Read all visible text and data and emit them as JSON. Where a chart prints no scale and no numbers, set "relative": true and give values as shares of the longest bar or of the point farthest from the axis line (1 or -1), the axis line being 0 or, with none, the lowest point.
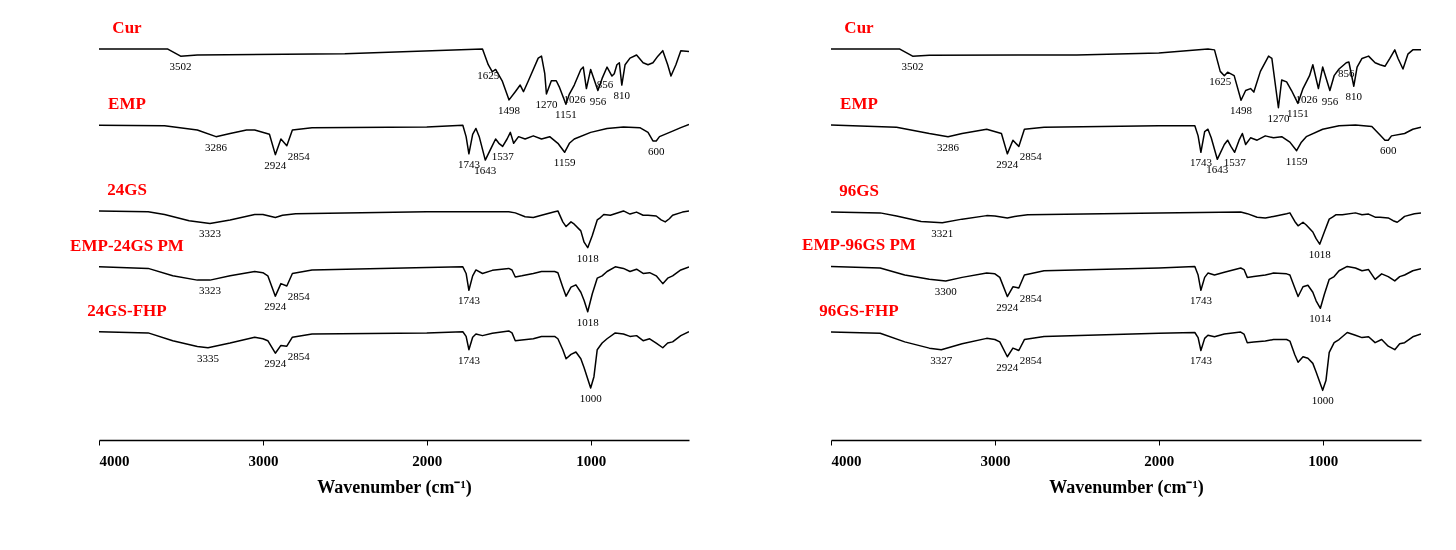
{
  "chart_data": [
    {
      "type": "line",
      "relative": true,
      "xlabel": "Wavenumber (cm⁻¹)",
      "xlim": [
        4000,
        400
      ],
      "xticks": [
        4000,
        3000,
        2000,
        1000
      ],
      "tick_labels": "x",
      "series": [
        {
          "name": "Cur",
          "color": "#000000",
          "x": [
            4000,
            3580,
            3502,
            3400,
            2500,
            1660,
            1625,
            1600,
            1580,
            1540,
            1498,
            1460,
            1430,
            1410,
            1380,
            1320,
            1300,
            1280,
            1270,
            1240,
            1210,
            1190,
            1151,
            1130,
            1100,
            1060,
            1045,
            1026,
            1000,
            956,
            930,
            900,
            870,
            856,
            840,
            825,
            810,
            790,
            760,
            720,
            680,
            650,
            620,
            590,
            560,
            530,
            510,
            480,
            450,
            400
          ],
          "values": [
            1.0,
            1.0,
            0.982,
            0.985,
            0.988,
            1.0,
            0.96,
            0.942,
            0.948,
            0.919,
            0.87,
            0.891,
            0.908,
            0.891,
            0.919,
            0.977,
            0.982,
            0.937,
            0.885,
            0.919,
            0.919,
            0.902,
            0.859,
            0.885,
            0.908,
            0.948,
            0.954,
            0.899,
            0.948,
            0.894,
            0.925,
            0.954,
            0.931,
            0.937,
            0.96,
            0.965,
            0.908,
            0.96,
            0.977,
            0.985,
            0.965,
            0.96,
            0.965,
            0.982,
            0.996,
            0.96,
            0.931,
            0.96,
            0.996,
            0.994
          ]
        },
        {
          "name": "EMP",
          "color": "#000000",
          "x": [
            4000,
            3600,
            3400,
            3286,
            3200,
            3100,
            3050,
            2960,
            2924,
            2890,
            2854,
            2820,
            2700,
            2000,
            1780,
            1760,
            1743,
            1720,
            1700,
            1680,
            1643,
            1600,
            1580,
            1560,
            1537,
            1510,
            1490,
            1470,
            1440,
            1400,
            1350,
            1300,
            1250,
            1200,
            1159,
            1130,
            1100,
            1000,
            900,
            800,
            700,
            650,
            620,
            600,
            580,
            500,
            450,
            400
          ],
          "values": [
            0.805,
            0.804,
            0.793,
            0.776,
            0.784,
            0.793,
            0.793,
            0.782,
            0.73,
            0.77,
            0.753,
            0.793,
            0.799,
            0.801,
            0.805,
            0.776,
            0.732,
            0.782,
            0.797,
            0.776,
            0.716,
            0.753,
            0.77,
            0.759,
            0.751,
            0.77,
            0.787,
            0.759,
            0.776,
            0.77,
            0.778,
            0.77,
            0.776,
            0.759,
            0.736,
            0.759,
            0.77,
            0.787,
            0.797,
            0.801,
            0.799,
            0.787,
            0.765,
            0.765,
            0.776,
            0.79,
            0.799,
            0.807
          ]
        },
        {
          "name": "24GS",
          "color": "#000000",
          "x": [
            4000,
            3700,
            3600,
            3450,
            3323,
            3200,
            3050,
            3000,
            2924,
            2880,
            2800,
            2000,
            1500,
            1460,
            1400,
            1350,
            1300,
            1220,
            1200,
            1170,
            1150,
            1120,
            1100,
            1060,
            1040,
            1018,
            990,
            960,
            940,
            920,
            880,
            800,
            760,
            720,
            680,
            650,
            600,
            570,
            545,
            520,
            500,
            440,
            400
          ],
          "values": [
            0.586,
            0.584,
            0.577,
            0.561,
            0.554,
            0.563,
            0.577,
            0.577,
            0.569,
            0.575,
            0.579,
            0.584,
            0.584,
            0.581,
            0.571,
            0.569,
            0.575,
            0.584,
            0.586,
            0.558,
            0.546,
            0.558,
            0.552,
            0.535,
            0.506,
            0.492,
            0.523,
            0.563,
            0.569,
            0.577,
            0.575,
            0.586,
            0.578,
            0.583,
            0.575,
            0.575,
            0.573,
            0.563,
            0.558,
            0.566,
            0.575,
            0.583,
            0.586
          ]
        },
        {
          "name": "EMP-24GS PM",
          "color": "#000000",
          "x": [
            4000,
            3700,
            3550,
            3400,
            3323,
            3200,
            3050,
            3000,
            2970,
            2924,
            2890,
            2854,
            2820,
            2700,
            2000,
            1780,
            1760,
            1743,
            1720,
            1700,
            1660,
            1600,
            1500,
            1480,
            1460,
            1420,
            1350,
            1300,
            1220,
            1200,
            1170,
            1150,
            1120,
            1090,
            1060,
            1040,
            1018,
            990,
            960,
            930,
            900,
            850,
            800,
            760,
            720,
            680,
            640,
            600,
            560,
            530,
            500,
            450,
            400
          ],
          "values": [
            0.443,
            0.439,
            0.42,
            0.409,
            0.409,
            0.42,
            0.431,
            0.428,
            0.42,
            0.368,
            0.4,
            0.394,
            0.426,
            0.435,
            0.441,
            0.443,
            0.426,
            0.383,
            0.42,
            0.435,
            0.426,
            0.434,
            0.439,
            0.435,
            0.417,
            0.42,
            0.426,
            0.431,
            0.431,
            0.428,
            0.391,
            0.368,
            0.391,
            0.397,
            0.378,
            0.357,
            0.328,
            0.374,
            0.414,
            0.42,
            0.431,
            0.443,
            0.439,
            0.431,
            0.437,
            0.426,
            0.428,
            0.42,
            0.4,
            0.414,
            0.42,
            0.435,
            0.443
          ]
        },
        {
          "name": "24GS-FHP",
          "color": "#000000",
          "x": [
            4000,
            3700,
            3550,
            3400,
            3335,
            3200,
            3050,
            3000,
            2970,
            2924,
            2890,
            2854,
            2820,
            2700,
            2000,
            1780,
            1760,
            1743,
            1720,
            1700,
            1660,
            1600,
            1500,
            1480,
            1460,
            1420,
            1350,
            1300,
            1220,
            1200,
            1170,
            1150,
            1120,
            1090,
            1060,
            1040,
            1000,
            980,
            960,
            930,
            900,
            850,
            800,
            760,
            720,
            680,
            640,
            600,
            560,
            530,
            500,
            450,
            400
          ],
          "values": [
            0.277,
            0.274,
            0.254,
            0.239,
            0.236,
            0.248,
            0.263,
            0.259,
            0.254,
            0.222,
            0.242,
            0.24,
            0.263,
            0.271,
            0.274,
            0.277,
            0.265,
            0.231,
            0.263,
            0.271,
            0.267,
            0.273,
            0.279,
            0.274,
            0.254,
            0.256,
            0.259,
            0.265,
            0.265,
            0.259,
            0.231,
            0.208,
            0.219,
            0.225,
            0.208,
            0.185,
            0.133,
            0.162,
            0.231,
            0.248,
            0.259,
            0.274,
            0.271,
            0.265,
            0.267,
            0.254,
            0.259,
            0.248,
            0.236,
            0.248,
            0.251,
            0.267,
            0.277
          ]
        }
      ],
      "annotations": [
        {
          "text": "3502",
          "x": 3502,
          "y": 0.982
        },
        {
          "text": "1625",
          "x": 1625,
          "y": 0.96
        },
        {
          "text": "1498",
          "x": 1498,
          "y": 0.87
        },
        {
          "text": "1270",
          "x": 1270,
          "y": 0.885
        },
        {
          "text": "1151",
          "x": 1151,
          "y": 0.859
        },
        {
          "text": "1026",
          "x": 1026,
          "y": 0.899
        },
        {
          "text": "956",
          "x": 956,
          "y": 0.894
        },
        {
          "text": "856",
          "x": 856,
          "y": 0.937
        },
        {
          "text": "810",
          "x": 810,
          "y": 0.908
        },
        {
          "text": "3286",
          "x": 3286,
          "y": 0.776
        },
        {
          "text": "2924",
          "x": 2924,
          "y": 0.73
        },
        {
          "text": "2854",
          "x": 2854,
          "y": 0.753
        },
        {
          "text": "1743",
          "x": 1743,
          "y": 0.732
        },
        {
          "text": "1643",
          "x": 1643,
          "y": 0.716
        },
        {
          "text": "1537",
          "x": 1537,
          "y": 0.751
        },
        {
          "text": "1159",
          "x": 1159,
          "y": 0.736
        },
        {
          "text": "600",
          "x": 600,
          "y": 0.765
        },
        {
          "text": "3323",
          "x": 3323,
          "y": 0.554
        },
        {
          "text": "1018",
          "x": 1018,
          "y": 0.492
        },
        {
          "text": "3323",
          "x": 3323,
          "y": 0.409
        },
        {
          "text": "2924",
          "x": 2924,
          "y": 0.368
        },
        {
          "text": "2854",
          "x": 2854,
          "y": 0.394
        },
        {
          "text": "1743",
          "x": 1743,
          "y": 0.383
        },
        {
          "text": "1018",
          "x": 1018,
          "y": 0.328
        },
        {
          "text": "3335",
          "x": 3335,
          "y": 0.236
        },
        {
          "text": "2924",
          "x": 2924,
          "y": 0.222
        },
        {
          "text": "2854",
          "x": 2854,
          "y": 0.24
        },
        {
          "text": "1743",
          "x": 1743,
          "y": 0.231
        },
        {
          "text": "1000",
          "x": 1000,
          "y": 0.133
        }
      ]
    },
    {
      "type": "line",
      "relative": true,
      "xlabel": "Wavenumber (cm⁻¹)",
      "xlim": [
        4000,
        400
      ],
      "xticks": [
        4000,
        3000,
        2000,
        1000
      ],
      "tick_labels": "x",
      "series": [
        {
          "name": "Cur",
          "color": "#000000",
          "x": [
            4000,
            3580,
            3502,
            3400,
            2500,
            2000,
            1700,
            1660,
            1625,
            1600,
            1580,
            1540,
            1498,
            1470,
            1440,
            1420,
            1380,
            1330,
            1310,
            1270,
            1250,
            1220,
            1190,
            1151,
            1120,
            1080,
            1060,
            1026,
            1000,
            956,
            930,
            900,
            870,
            856,
            840,
            810,
            790,
            760,
            720,
            680,
            650,
            620,
            590,
            560,
            540,
            510,
            480,
            450,
            400
          ],
          "values": [
            1.0,
            1.0,
            0.982,
            0.984,
            0.985,
            0.99,
            1.0,
            0.998,
            0.943,
            0.932,
            0.941,
            0.932,
            0.869,
            0.894,
            0.899,
            0.89,
            0.943,
            0.982,
            0.976,
            0.85,
            0.921,
            0.916,
            0.894,
            0.861,
            0.899,
            0.932,
            0.96,
            0.899,
            0.954,
            0.894,
            0.932,
            0.949,
            0.96,
            0.965,
            0.967,
            0.905,
            0.954,
            0.976,
            0.982,
            0.965,
            0.96,
            0.956,
            0.976,
            0.998,
            0.976,
            0.949,
            0.987,
            0.998,
            0.998
          ]
        },
        {
          "name": "EMP",
          "color": "#000000",
          "x": [
            4000,
            3600,
            3400,
            3286,
            3200,
            3050,
            2960,
            2924,
            2890,
            2854,
            2820,
            2700,
            2000,
            1780,
            1760,
            1743,
            1720,
            1700,
            1680,
            1643,
            1600,
            1580,
            1560,
            1537,
            1510,
            1490,
            1470,
            1440,
            1400,
            1350,
            1300,
            1250,
            1200,
            1159,
            1130,
            1100,
            1000,
            900,
            800,
            700,
            650,
            620,
            600,
            580,
            500,
            450,
            400
          ],
          "values": [
            0.806,
            0.8,
            0.784,
            0.776,
            0.784,
            0.795,
            0.784,
            0.732,
            0.767,
            0.751,
            0.795,
            0.8,
            0.804,
            0.804,
            0.778,
            0.736,
            0.789,
            0.795,
            0.773,
            0.718,
            0.756,
            0.767,
            0.751,
            0.736,
            0.767,
            0.784,
            0.756,
            0.773,
            0.767,
            0.778,
            0.773,
            0.776,
            0.762,
            0.74,
            0.762,
            0.776,
            0.795,
            0.804,
            0.806,
            0.802,
            0.78,
            0.767,
            0.767,
            0.778,
            0.784,
            0.795,
            0.8
          ]
        },
        {
          "name": "96GS",
          "color": "#000000",
          "x": [
            4000,
            3700,
            3600,
            3450,
            3321,
            3200,
            3050,
            3000,
            2924,
            2880,
            2800,
            2000,
            1500,
            1460,
            1400,
            1350,
            1300,
            1220,
            1200,
            1170,
            1150,
            1120,
            1100,
            1060,
            1040,
            1018,
            990,
            960,
            940,
            920,
            880,
            800,
            760,
            720,
            680,
            650,
            600,
            570,
            545,
            520,
            500,
            440,
            400
          ],
          "values": [
            0.583,
            0.581,
            0.573,
            0.559,
            0.556,
            0.565,
            0.574,
            0.573,
            0.568,
            0.572,
            0.576,
            0.581,
            0.583,
            0.579,
            0.57,
            0.568,
            0.572,
            0.579,
            0.581,
            0.559,
            0.548,
            0.557,
            0.55,
            0.532,
            0.515,
            0.501,
            0.532,
            0.565,
            0.57,
            0.576,
            0.576,
            0.581,
            0.576,
            0.578,
            0.57,
            0.57,
            0.568,
            0.561,
            0.557,
            0.565,
            0.572,
            0.579,
            0.581
          ]
        },
        {
          "name": "EMP-96GS  PM",
          "color": "#000000",
          "x": [
            4000,
            3700,
            3550,
            3400,
            3300,
            3200,
            3050,
            3000,
            2970,
            2924,
            2890,
            2854,
            2820,
            2700,
            2000,
            1780,
            1760,
            1743,
            1720,
            1700,
            1660,
            1600,
            1500,
            1480,
            1460,
            1420,
            1350,
            1300,
            1220,
            1200,
            1170,
            1150,
            1120,
            1090,
            1060,
            1040,
            1014,
            990,
            960,
            930,
            900,
            850,
            800,
            760,
            720,
            680,
            640,
            600,
            560,
            530,
            500,
            450,
            400
          ],
          "values": [
            0.444,
            0.44,
            0.422,
            0.411,
            0.407,
            0.416,
            0.427,
            0.425,
            0.416,
            0.367,
            0.392,
            0.389,
            0.422,
            0.433,
            0.44,
            0.444,
            0.422,
            0.383,
            0.416,
            0.427,
            0.422,
            0.429,
            0.44,
            0.436,
            0.416,
            0.418,
            0.422,
            0.427,
            0.425,
            0.422,
            0.389,
            0.367,
            0.392,
            0.396,
            0.378,
            0.356,
            0.337,
            0.372,
            0.411,
            0.418,
            0.433,
            0.444,
            0.44,
            0.433,
            0.436,
            0.411,
            0.425,
            0.418,
            0.407,
            0.418,
            0.422,
            0.433,
            0.438
          ]
        },
        {
          "name": "96GS-FHP",
          "color": "#000000",
          "x": [
            4000,
            3700,
            3550,
            3400,
            3327,
            3200,
            3050,
            3000,
            2970,
            2924,
            2890,
            2854,
            2820,
            2700,
            2000,
            1780,
            1760,
            1743,
            1720,
            1700,
            1660,
            1600,
            1500,
            1480,
            1460,
            1420,
            1350,
            1300,
            1220,
            1200,
            1170,
            1150,
            1120,
            1090,
            1060,
            1040,
            1000,
            980,
            960,
            930,
            900,
            850,
            800,
            760,
            720,
            680,
            640,
            600,
            560,
            530,
            500,
            450,
            400
          ],
          "values": [
            0.276,
            0.273,
            0.251,
            0.235,
            0.231,
            0.246,
            0.26,
            0.257,
            0.251,
            0.213,
            0.235,
            0.229,
            0.257,
            0.265,
            0.273,
            0.275,
            0.262,
            0.229,
            0.26,
            0.268,
            0.264,
            0.271,
            0.276,
            0.271,
            0.249,
            0.251,
            0.253,
            0.257,
            0.257,
            0.253,
            0.218,
            0.199,
            0.213,
            0.209,
            0.196,
            0.174,
            0.127,
            0.152,
            0.224,
            0.249,
            0.257,
            0.275,
            0.268,
            0.262,
            0.264,
            0.249,
            0.257,
            0.24,
            0.231,
            0.246,
            0.249,
            0.264,
            0.271
          ]
        }
      ],
      "annotations": [
        {
          "text": "3502",
          "x": 3502,
          "y": 0.982
        },
        {
          "text": "1625",
          "x": 1625,
          "y": 0.943
        },
        {
          "text": "1498",
          "x": 1498,
          "y": 0.869
        },
        {
          "text": "1270",
          "x": 1270,
          "y": 0.85
        },
        {
          "text": "1151",
          "x": 1151,
          "y": 0.861
        },
        {
          "text": "1026",
          "x": 1026,
          "y": 0.899
        },
        {
          "text": "956",
          "x": 956,
          "y": 0.894
        },
        {
          "text": "856",
          "x": 856,
          "y": 0.965
        },
        {
          "text": "810",
          "x": 810,
          "y": 0.905
        },
        {
          "text": "3286",
          "x": 3286,
          "y": 0.776
        },
        {
          "text": "2924",
          "x": 2924,
          "y": 0.732
        },
        {
          "text": "2854",
          "x": 2854,
          "y": 0.751
        },
        {
          "text": "1743",
          "x": 1743,
          "y": 0.736
        },
        {
          "text": "1643",
          "x": 1643,
          "y": 0.718
        },
        {
          "text": "1537",
          "x": 1537,
          "y": 0.736
        },
        {
          "text": "1159",
          "x": 1159,
          "y": 0.74
        },
        {
          "text": "600",
          "x": 600,
          "y": 0.767
        },
        {
          "text": "3321",
          "x": 3321,
          "y": 0.556
        },
        {
          "text": "1018",
          "x": 1018,
          "y": 0.501
        },
        {
          "text": "3300",
          "x": 3300,
          "y": 0.407
        },
        {
          "text": "2924",
          "x": 2924,
          "y": 0.367
        },
        {
          "text": "2854",
          "x": 2854,
          "y": 0.389
        },
        {
          "text": "1743",
          "x": 1743,
          "y": 0.383
        },
        {
          "text": "1014",
          "x": 1014,
          "y": 0.337
        },
        {
          "text": "3327",
          "x": 3327,
          "y": 0.231
        },
        {
          "text": "2924",
          "x": 2924,
          "y": 0.213
        },
        {
          "text": "2854",
          "x": 2854,
          "y": 0.229
        },
        {
          "text": "1743",
          "x": 1743,
          "y": 0.229
        },
        {
          "text": "1000",
          "x": 1000,
          "y": 0.127
        }
      ]
    }
  ]
}
